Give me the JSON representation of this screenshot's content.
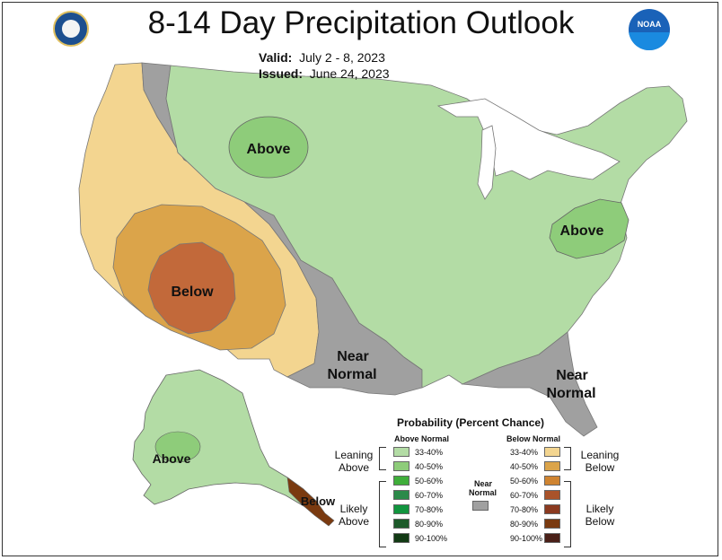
{
  "title": "8-14 Day Precipitation Outlook",
  "valid": {
    "label": "Valid:",
    "value": "July 2 - 8, 2023"
  },
  "issued": {
    "label": "Issued:",
    "value": "June 24, 2023"
  },
  "noaa_logo_text": "NOAA",
  "map_labels": {
    "above_north": "Above",
    "above_east": "Above",
    "below_sw": "Below",
    "near_normal_tx_1": "Near",
    "near_normal_tx_2": "Normal",
    "near_normal_fl_1": "Near",
    "near_normal_fl_2": "Normal",
    "above_ak": "Above",
    "below_ak": "Below"
  },
  "legend": {
    "title": "Probability (Percent Chance)",
    "above_header": "Above Normal",
    "below_header": "Below Normal",
    "near_header_1": "Near",
    "near_header_2": "Normal",
    "leaning_above_1": "Leaning",
    "leaning_above_2": "Above",
    "likely_above_1": "Likely",
    "likely_above_2": "Above",
    "leaning_below_1": "Leaning",
    "leaning_below_2": "Below",
    "likely_below_1": "Likely",
    "likely_below_2": "Below",
    "above_ranges": [
      "33-40%",
      "40-50%",
      "50-60%",
      "60-70%",
      "70-80%",
      "80-90%",
      "90-100%"
    ],
    "below_ranges": [
      "33-40%",
      "40-50%",
      "50-60%",
      "60-70%",
      "70-80%",
      "80-90%",
      "90-100%"
    ],
    "above_colors": [
      "#b3dca5",
      "#8ecc7a",
      "#3fae3a",
      "#2c8a4a",
      "#11953e",
      "#1d5a2a",
      "#123a14"
    ],
    "below_colors": [
      "#f3d590",
      "#dba44a",
      "#cf8431",
      "#a9532a",
      "#8b3a20",
      "#7a3a10",
      "#4a2018"
    ],
    "near_color": "#a0a0a0"
  },
  "colors": {
    "above_lean": "#b3dca5",
    "above_40": "#8ecc7a",
    "below_lean": "#f3d590",
    "below_40": "#dba44a",
    "below_50": "#c2693a",
    "near": "#a0a0a0"
  }
}
